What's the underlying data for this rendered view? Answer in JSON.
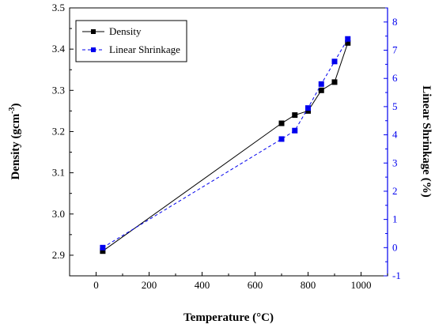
{
  "chart_data": {
    "type": "line",
    "title": "",
    "xlabel": "Temperature (°C)",
    "ylabel_left": "Density (gcm",
    "ylabel_left_sup": "-3",
    "ylabel_left_tail": ")",
    "ylabel_right": "Linear Shrinkage (%)",
    "xlim": [
      -100,
      1100
    ],
    "ylim_left": [
      2.85,
      3.5
    ],
    "ylim_right": [
      -1,
      8.5
    ],
    "x_ticks": [
      0,
      200,
      400,
      600,
      800,
      1000
    ],
    "y_left_ticks": [
      2.9,
      3.0,
      3.1,
      3.2,
      3.3,
      3.4,
      3.5
    ],
    "y_right_ticks": [
      -1,
      0,
      1,
      2,
      3,
      4,
      5,
      6,
      7,
      8
    ],
    "grid": false,
    "legend_position": "top-left",
    "series": [
      {
        "name": "Density",
        "axis": "left",
        "color": "#000000",
        "line_style": "solid",
        "marker": "square",
        "x": [
          25,
          700,
          750,
          800,
          850,
          900,
          950
        ],
        "y": [
          2.91,
          3.22,
          3.24,
          3.25,
          3.3,
          3.32,
          3.415
        ]
      },
      {
        "name": "Linear Shrinkage",
        "axis": "right",
        "color": "#0000ee",
        "line_style": "dashed",
        "marker": "square",
        "x": [
          25,
          700,
          750,
          800,
          850,
          900,
          950
        ],
        "y": [
          0.0,
          3.85,
          4.15,
          4.95,
          5.8,
          6.6,
          7.4
        ]
      }
    ]
  }
}
